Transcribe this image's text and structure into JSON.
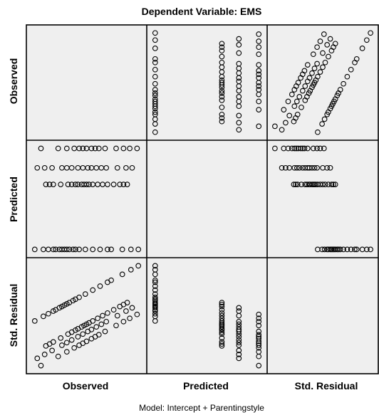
{
  "chart_data": {
    "type": "scatter",
    "subtype": "scatterplot-matrix",
    "title": "Dependent Variable: EMS",
    "footnote": "Model: Intercept + Parentingstyle",
    "variables": [
      "Observed",
      "Predicted",
      "Std. Residual"
    ],
    "predicted_levels": [
      0.15,
      0.62,
      0.74,
      0.88
    ],
    "groups": [
      {
        "predicted": 0.15,
        "observed": [
          0.05,
          0.12,
          0.16,
          0.2,
          0.22,
          0.25,
          0.27,
          0.29,
          0.31,
          0.33,
          0.36,
          0.38,
          0.41,
          0.46,
          0.52,
          0.58,
          0.64,
          0.67,
          0.76,
          0.83,
          0.89
        ]
      },
      {
        "predicted": 0.62,
        "observed": [
          0.14,
          0.17,
          0.2,
          0.26,
          0.32,
          0.35,
          0.38,
          0.4,
          0.43,
          0.45,
          0.47,
          0.49,
          0.52,
          0.56,
          0.6,
          0.64,
          0.69,
          0.74,
          0.77,
          0.8
        ]
      },
      {
        "predicted": 0.74,
        "observed": [
          0.07,
          0.13,
          0.19,
          0.27,
          0.31,
          0.35,
          0.4,
          0.44,
          0.48,
          0.51,
          0.55,
          0.59,
          0.63,
          0.72,
          0.79,
          0.84
        ]
      },
      {
        "predicted": 0.88,
        "observed": [
          0.1,
          0.24,
          0.31,
          0.37,
          0.41,
          0.44,
          0.47,
          0.51,
          0.54,
          0.57,
          0.62,
          0.71,
          0.77,
          0.82,
          0.88
        ]
      }
    ],
    "grid": false,
    "legend": "none"
  }
}
